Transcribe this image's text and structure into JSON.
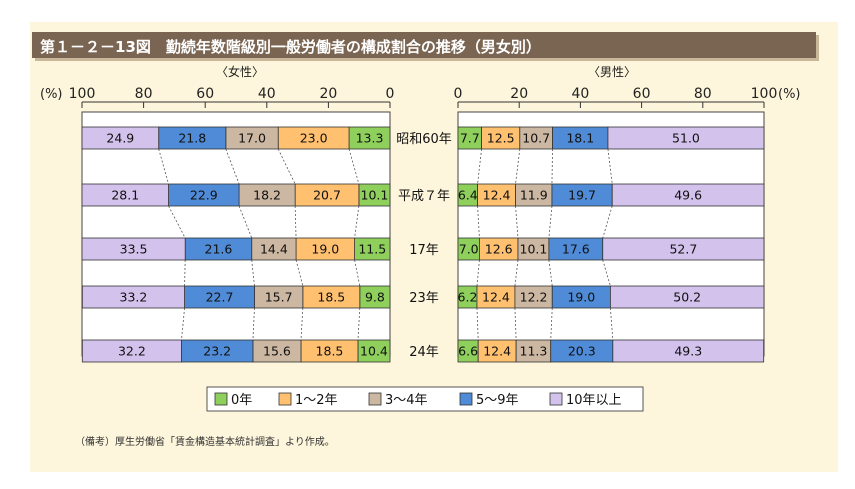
{
  "title": "第１－２－13図　勤続年数階級別一般労働者の構成割合の推移（男女別）",
  "note": "（備考）厚生労働省「賃金構造基本統計調査」より作成。",
  "colors": {
    "panel_bg": "#fdf6dc",
    "title_bg": "#7a6452",
    "legend_border": "#555555",
    "segment_colors": [
      "#8fd05c",
      "#ffc070",
      "#ccb8a2",
      "#4f8bd6",
      "#d2c2ec"
    ]
  },
  "chart_data": {
    "type": "bar",
    "orientation": "horizontal",
    "stacked": true,
    "categories": [
      "昭和60年",
      "平成７年",
      "17年",
      "23年",
      "24年"
    ],
    "legend": [
      "0年",
      "1～2年",
      "3～4年",
      "5～9年",
      "10年以上"
    ],
    "unit_label": "(%)",
    "xlim": [
      0,
      100
    ],
    "panels": [
      {
        "title": "〈女性〉",
        "direction": "right-to-left",
        "ticks": [
          "100",
          "80",
          "60",
          "40",
          "20",
          "0"
        ],
        "series": [
          {
            "name": "0年",
            "values": [
              13.3,
              10.1,
              11.5,
              9.8,
              10.4
            ]
          },
          {
            "name": "1～2年",
            "values": [
              23.0,
              20.7,
              19.0,
              18.5,
              18.5
            ]
          },
          {
            "name": "3～4年",
            "values": [
              17.0,
              18.2,
              14.4,
              15.7,
              15.6
            ]
          },
          {
            "name": "5～9年",
            "values": [
              21.8,
              22.9,
              21.6,
              22.7,
              23.2
            ]
          },
          {
            "name": "10年以上",
            "values": [
              24.9,
              28.1,
              33.5,
              33.2,
              32.2
            ]
          }
        ]
      },
      {
        "title": "〈男性〉",
        "direction": "left-to-right",
        "ticks": [
          "0",
          "20",
          "40",
          "60",
          "80",
          "100"
        ],
        "series": [
          {
            "name": "0年",
            "values": [
              7.7,
              6.4,
              7.0,
              6.2,
              6.6
            ]
          },
          {
            "name": "1～2年",
            "values": [
              12.5,
              12.4,
              12.6,
              12.4,
              12.4
            ]
          },
          {
            "name": "3～4年",
            "values": [
              10.7,
              11.9,
              10.1,
              12.2,
              11.3
            ]
          },
          {
            "name": "5～9年",
            "values": [
              18.1,
              19.7,
              17.6,
              19.0,
              20.3
            ]
          },
          {
            "name": "10年以上",
            "values": [
              51.0,
              49.6,
              52.7,
              50.2,
              49.3
            ]
          }
        ]
      }
    ]
  }
}
